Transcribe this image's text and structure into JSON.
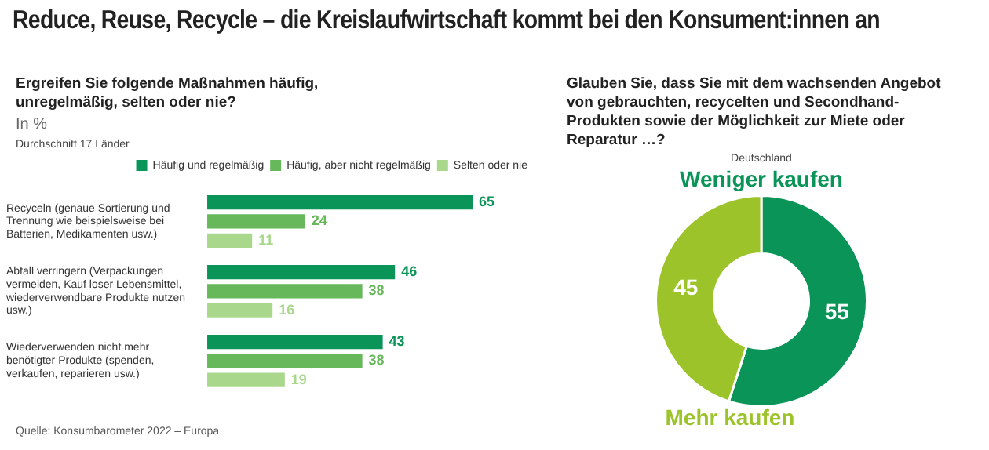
{
  "chart_data": [
    {
      "type": "bar",
      "orientation": "horizontal",
      "title": "Reduce, Reuse, Recycle – die Kreislaufwirtschaft kommt bei den Konsument:innen an",
      "subtitle": "Ergreifen Sie folgende Maßnahmen häufig, unregelmäßig, selten oder nie?",
      "xlabel": "In %",
      "annotations": [
        "Durchschnitt 17 Länder",
        "Quelle: Konsumbarometer 2022 – Europa"
      ],
      "categories": [
        "Recyceln (genaue Sortierung und Trennung wie beispielsweise bei Batterien, Medikamenten usw.)",
        "Abfall verringern (Verpackungen vermeiden, Kauf loser Lebensmittel, wiederverwendbare Produkte nutzen usw.)",
        "Wiederverwenden nicht mehr benötigter Produkte (spenden, verkaufen, reparieren usw.)"
      ],
      "series": [
        {
          "name": "Häufig und regelmäßig",
          "color": "#0a9457",
          "values": [
            65,
            46,
            43
          ]
        },
        {
          "name": "Häufig, aber nicht regelmäßig",
          "color": "#66b85a",
          "values": [
            24,
            38,
            38
          ]
        },
        {
          "name": "Selten oder nie",
          "color": "#a9d88c",
          "values": [
            11,
            16,
            19
          ]
        }
      ],
      "data_labels": true,
      "legend": "top right"
    },
    {
      "type": "donut",
      "title": "Glauben Sie, dass Sie mit dem wachsenden Angebot von gebrauchten, recycelten und Secondhand-Produkten sowie der Möglichkeit zur Miete oder Reparatur …?",
      "subtitle": "Deutschland",
      "categories": [
        "Weniger kaufen",
        "Mehr kaufen"
      ],
      "values": [
        55,
        45
      ],
      "colors": [
        "#0a9457",
        "#9cc42a"
      ],
      "data_labels": true,
      "legend": false
    }
  ]
}
